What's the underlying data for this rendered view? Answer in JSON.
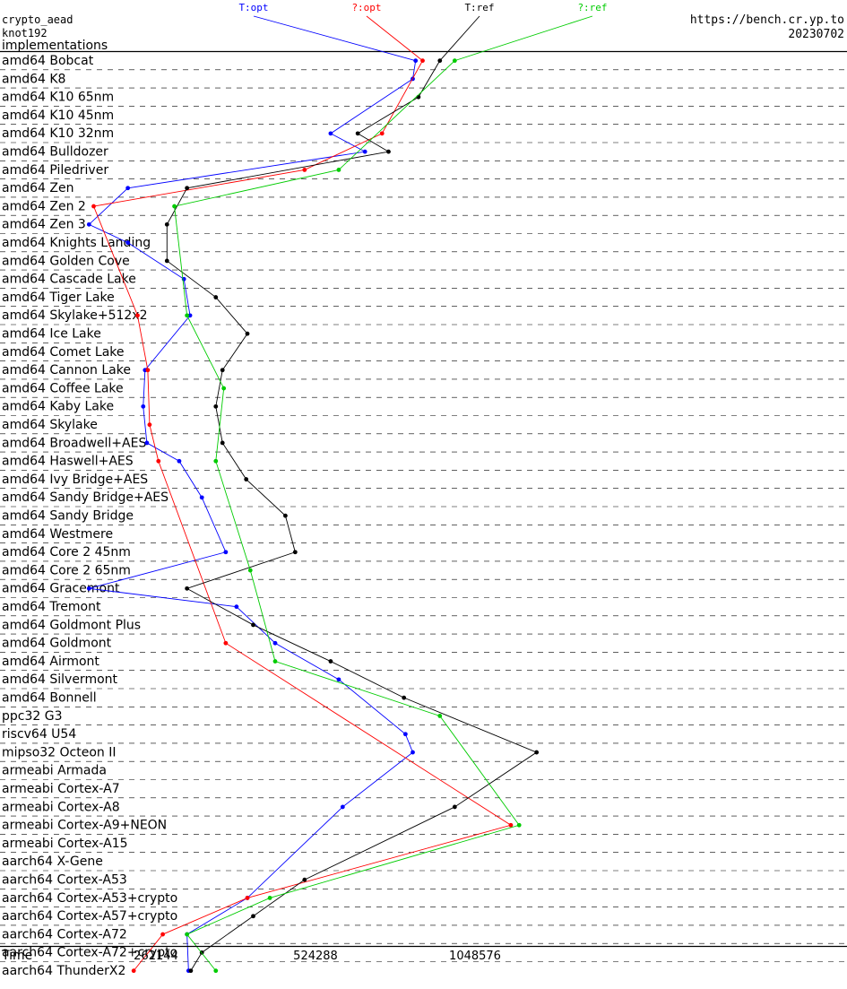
{
  "header": {
    "left_lines": [
      "crypto_aead",
      "knot192",
      "implementations"
    ],
    "right_lines": [
      "https://bench.cr.yp.to",
      "20230702"
    ]
  },
  "chart_data": {
    "type": "line",
    "title": "crypto_aead knot192",
    "xlabel": "Time",
    "x_scale": "log2",
    "x_ticks": [
      262144,
      524288,
      1048576
    ],
    "x_tick_labels": [
      "262144",
      "524288",
      "1048576"
    ],
    "grid": true,
    "legend": "top",
    "categories": [
      "amd64 Bobcat",
      "amd64 K8",
      "amd64 K10 65nm",
      "amd64 K10 45nm",
      "amd64 K10 32nm",
      "amd64 Bulldozer",
      "amd64 Piledriver",
      "amd64 Zen",
      "amd64 Zen 2",
      "amd64 Zen 3",
      "amd64 Knights Landing",
      "amd64 Golden Cove",
      "amd64 Cascade Lake",
      "amd64 Tiger Lake",
      "amd64 Skylake+512x2",
      "amd64 Ice Lake",
      "amd64 Comet Lake",
      "amd64 Cannon Lake",
      "amd64 Coffee Lake",
      "amd64 Kaby Lake",
      "amd64 Skylake",
      "amd64 Broadwell+AES",
      "amd64 Haswell+AES",
      "amd64 Ivy Bridge+AES",
      "amd64 Sandy Bridge+AES",
      "amd64 Sandy Bridge",
      "amd64 Westmere",
      "amd64 Core 2 45nm",
      "amd64 Core 2 65nm",
      "amd64 Gracemont",
      "amd64 Tremont",
      "amd64 Goldmont Plus",
      "amd64 Goldmont",
      "amd64 Airmont",
      "amd64 Silvermont",
      "amd64 Bonnell",
      "ppc32 G3",
      "riscv64 U54",
      "mipso32 Octeon II",
      "armeabi Armada",
      "armeabi Cortex-A7",
      "armeabi Cortex-A8",
      "armeabi Cortex-A9+NEON",
      "armeabi Cortex-A15",
      "aarch64 X-Gene",
      "aarch64 Cortex-A53",
      "aarch64 Cortex-A53+crypto",
      "aarch64 Cortex-A57+crypto",
      "aarch64 Cortex-A72",
      "aarch64 Cortex-A72+crypto",
      "aarch64 ThunderX2"
    ],
    "series": [
      {
        "name": "T:opt",
        "color": "#0000ff",
        "points": [
          [
            0,
            810000
          ],
          [
            1,
            800000
          ],
          [
            4,
            560000
          ],
          [
            5,
            650000
          ],
          [
            7,
            232000
          ],
          [
            9,
            196000
          ],
          [
            10,
            232000
          ],
          [
            12,
            296000
          ],
          [
            14,
            304000
          ],
          [
            17,
            250000
          ],
          [
            19,
            248000
          ],
          [
            21,
            252000
          ],
          [
            22,
            290000
          ],
          [
            24,
            320000
          ],
          [
            27,
            355000
          ],
          [
            29,
            196000
          ],
          [
            30,
            372000
          ],
          [
            32,
            440000
          ],
          [
            34,
            580000
          ],
          [
            37,
            775000
          ],
          [
            38,
            800000
          ],
          [
            41,
            590000
          ],
          [
            46,
            390000
          ],
          [
            48,
            300000
          ],
          [
            50,
            302000
          ]
        ]
      },
      {
        "name": "?:opt",
        "color": "#ff0000",
        "points": [
          [
            0,
            835000
          ],
          [
            4,
            700000
          ],
          [
            6,
            500000
          ],
          [
            8,
            200000
          ],
          [
            14,
            242000
          ],
          [
            17,
            253000
          ],
          [
            20,
            255000
          ],
          [
            22,
            265000
          ],
          [
            32,
            355000
          ],
          [
            42,
            1225000
          ],
          [
            46,
            390000
          ],
          [
            48,
            270000
          ],
          [
            50,
            238000
          ]
        ]
      },
      {
        "name": "T:ref",
        "color": "#000000",
        "points": [
          [
            0,
            900000
          ],
          [
            2,
            820000
          ],
          [
            4,
            630000
          ],
          [
            5,
            720000
          ],
          [
            7,
            300000
          ],
          [
            9,
            275000
          ],
          [
            11,
            275000
          ],
          [
            13,
            340000
          ],
          [
            15,
            390000
          ],
          [
            17,
            350000
          ],
          [
            19,
            340000
          ],
          [
            21,
            350000
          ],
          [
            23,
            388000
          ],
          [
            25,
            460000
          ],
          [
            27,
            480000
          ],
          [
            29,
            300000
          ],
          [
            31,
            400000
          ],
          [
            33,
            560000
          ],
          [
            35,
            770000
          ],
          [
            38,
            1370000
          ],
          [
            41,
            960000
          ],
          [
            45,
            500000
          ],
          [
            47,
            400000
          ],
          [
            49,
            320000
          ],
          [
            50,
            305000
          ]
        ]
      },
      {
        "name": "?:ref",
        "color": "#00cc00",
        "points": [
          [
            0,
            960000
          ],
          [
            6,
            580000
          ],
          [
            8,
            284000
          ],
          [
            14,
            300000
          ],
          [
            18,
            352000
          ],
          [
            22,
            340000
          ],
          [
            28,
            395000
          ],
          [
            33,
            440000
          ],
          [
            36,
            900000
          ],
          [
            42,
            1270000
          ],
          [
            46,
            430000
          ],
          [
            48,
            300000
          ],
          [
            50,
            340000
          ]
        ]
      }
    ]
  }
}
